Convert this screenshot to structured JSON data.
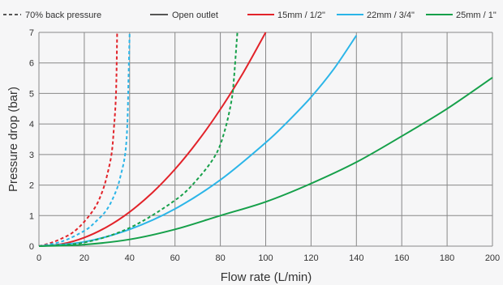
{
  "chart_data": {
    "type": "line",
    "title": "",
    "xlabel": "Flow rate (L/min)",
    "ylabel": "Pressure drop (bar)",
    "xlim": [
      0,
      200
    ],
    "ylim": [
      0,
      7
    ],
    "x_ticks": [
      "0",
      "20",
      "40",
      "60",
      "80",
      "100",
      "120",
      "140",
      "160",
      "180",
      "200"
    ],
    "y_ticks": [
      "0",
      "1",
      "2",
      "3",
      "4",
      "5",
      "6",
      "7"
    ],
    "grid": true,
    "legend_position": "top",
    "legend": [
      {
        "label": "70% back pressure",
        "style": "dashed",
        "color": "#555555"
      },
      {
        "label": "Open outlet",
        "style": "solid",
        "color": "#555555"
      },
      {
        "label": "15mm / 1/2\"",
        "style": "solid",
        "color": "#e2232a"
      },
      {
        "label": "22mm / 3/4\"",
        "style": "solid",
        "color": "#2bb5e8"
      },
      {
        "label": "25mm / 1\"",
        "style": "solid",
        "color": "#16a04a"
      }
    ],
    "series": [
      {
        "group": "15mm / 1/2\"",
        "condition": "Open outlet",
        "color": "#e2232a",
        "dash": false,
        "points": [
          [
            0,
            0
          ],
          [
            10,
            0.07
          ],
          [
            20,
            0.28
          ],
          [
            30,
            0.63
          ],
          [
            40,
            1.12
          ],
          [
            50,
            1.75
          ],
          [
            60,
            2.52
          ],
          [
            70,
            3.43
          ],
          [
            80,
            4.48
          ],
          [
            90,
            5.67
          ],
          [
            100,
            7.0
          ]
        ]
      },
      {
        "group": "22mm / 3/4\"",
        "condition": "Open outlet",
        "color": "#2bb5e8",
        "dash": false,
        "points": [
          [
            0,
            0
          ],
          [
            20,
            0.14
          ],
          [
            40,
            0.55
          ],
          [
            60,
            1.22
          ],
          [
            80,
            2.17
          ],
          [
            100,
            3.39
          ],
          [
            110,
            4.1
          ],
          [
            120,
            4.88
          ],
          [
            130,
            5.8
          ],
          [
            140,
            6.9
          ]
        ]
      },
      {
        "group": "25mm / 1\"",
        "condition": "Open outlet",
        "color": "#16a04a",
        "dash": false,
        "points": [
          [
            0,
            0
          ],
          [
            20,
            0.05
          ],
          [
            40,
            0.22
          ],
          [
            60,
            0.55
          ],
          [
            80,
            1.0
          ],
          [
            100,
            1.45
          ],
          [
            120,
            2.05
          ],
          [
            140,
            2.75
          ],
          [
            160,
            3.6
          ],
          [
            180,
            4.5
          ],
          [
            200,
            5.52
          ]
        ]
      },
      {
        "group": "15mm / 1/2\"",
        "condition": "70% back pressure",
        "color": "#e2232a",
        "dash": true,
        "points": [
          [
            0,
            0
          ],
          [
            5,
            0.1
          ],
          [
            10,
            0.25
          ],
          [
            15,
            0.45
          ],
          [
            20,
            0.8
          ],
          [
            25,
            1.3
          ],
          [
            28,
            1.8
          ],
          [
            30,
            2.3
          ],
          [
            32,
            3.0
          ],
          [
            33,
            3.8
          ],
          [
            34,
            5.0
          ],
          [
            34.5,
            7.0
          ]
        ]
      },
      {
        "group": "22mm / 3/4\"",
        "condition": "70% back pressure",
        "color": "#2bb5e8",
        "dash": true,
        "points": [
          [
            0,
            0
          ],
          [
            10,
            0.15
          ],
          [
            20,
            0.5
          ],
          [
            25,
            0.8
          ],
          [
            30,
            1.2
          ],
          [
            34,
            1.8
          ],
          [
            36,
            2.3
          ],
          [
            38,
            3.0
          ],
          [
            39,
            4.0
          ],
          [
            39.5,
            5.5
          ],
          [
            40,
            7.0
          ]
        ]
      },
      {
        "group": "25mm / 1\"",
        "condition": "70% back pressure",
        "color": "#16a04a",
        "dash": true,
        "points": [
          [
            0,
            0
          ],
          [
            20,
            0.12
          ],
          [
            40,
            0.6
          ],
          [
            60,
            1.5
          ],
          [
            70,
            2.2
          ],
          [
            78,
            3.0
          ],
          [
            82,
            3.8
          ],
          [
            85,
            4.8
          ],
          [
            86,
            5.5
          ],
          [
            87,
            6.5
          ],
          [
            87.5,
            7.0
          ]
        ]
      }
    ]
  }
}
